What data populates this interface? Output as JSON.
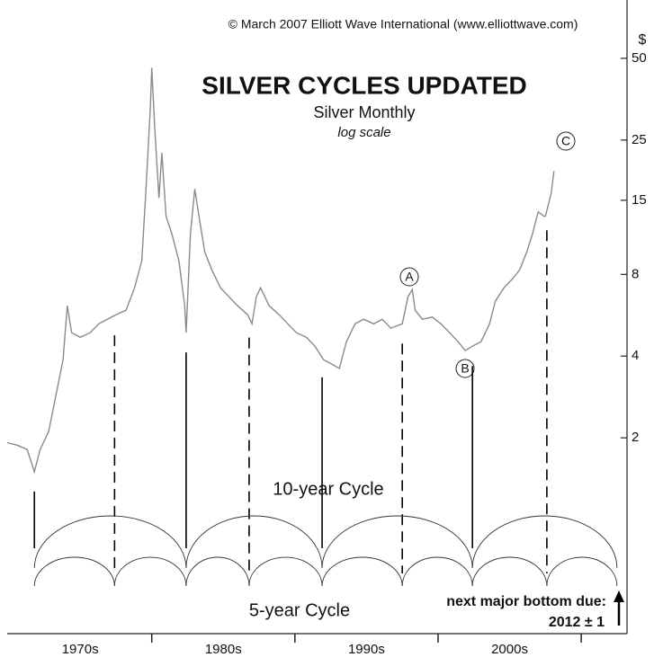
{
  "chart_data": {
    "type": "line",
    "title": "SILVER CYCLES UPDATED",
    "subtitle": "Silver Monthly",
    "scale_note": "log scale",
    "copyright": "© March 2007 Elliott Wave International (www.elliottwave.com)",
    "y_unit": "$",
    "log_scale": true,
    "color": "#8a8a8a",
    "x": [
      1969.9,
      1970.6,
      1971.3,
      1971.8,
      1972.2,
      1972.8,
      1973.3,
      1973.8,
      1974.1,
      1974.4,
      1975.0,
      1975.7,
      1976.3,
      1976.9,
      1977.5,
      1978.2,
      1978.8,
      1979.3,
      1979.6,
      1979.9,
      1980.0,
      1980.2,
      1980.5,
      1980.7,
      1981.0,
      1981.4,
      1981.9,
      1982.3,
      1982.4,
      1982.7,
      1983.0,
      1983.3,
      1983.7,
      1984.2,
      1984.8,
      1985.4,
      1986.0,
      1986.7,
      1987.0,
      1987.3,
      1987.6,
      1988.2,
      1988.9,
      1989.5,
      1990.1,
      1990.8,
      1991.4,
      1992.0,
      1992.6,
      1993.1,
      1993.6,
      1994.2,
      1994.8,
      1995.5,
      1996.1,
      1996.7,
      1997.5,
      1997.9,
      1998.2,
      1998.4,
      1998.9,
      1999.6,
      2000.2,
      2000.8,
      2001.4,
      2001.9,
      2002.4,
      2003.0,
      2003.6,
      2004.0,
      2004.6,
      2005.2,
      2005.7,
      2006.2,
      2006.6,
      2007.0,
      2007.4,
      2007.5,
      2007.9,
      2008.1
    ],
    "values": [
      1.92,
      1.88,
      1.81,
      1.5,
      1.81,
      2.11,
      2.86,
      3.88,
      6.13,
      4.88,
      4.69,
      4.88,
      5.26,
      5.47,
      5.68,
      5.9,
      7.14,
      8.97,
      16.5,
      32.8,
      46.1,
      28.1,
      15.3,
      22.4,
      13.1,
      11.3,
      8.97,
      6.13,
      4.88,
      11.3,
      16.5,
      13.1,
      9.68,
      8.31,
      7.14,
      6.61,
      6.13,
      5.68,
      5.26,
      6.61,
      7.14,
      6.13,
      5.68,
      5.26,
      4.88,
      4.69,
      4.35,
      3.88,
      3.73,
      3.6,
      4.52,
      5.26,
      5.47,
      5.26,
      5.47,
      5.07,
      5.26,
      6.61,
      7.03,
      5.9,
      5.47,
      5.57,
      5.26,
      4.88,
      4.52,
      4.19,
      4.35,
      4.52,
      5.26,
      6.37,
      7.14,
      7.7,
      8.31,
      9.68,
      11.3,
      13.6,
      13.1,
      13.1,
      15.9,
      19.2
    ],
    "xlim": [
      1969.9,
      2013.2
    ],
    "ylim": [
      0.38,
      82
    ],
    "yticks": [
      2,
      4,
      8,
      15,
      25,
      50
    ],
    "xticks": [
      {
        "value": 1975,
        "label": "1970s"
      },
      {
        "value": 1985,
        "label": "1980s"
      },
      {
        "value": 1995,
        "label": "1990s"
      },
      {
        "value": 2005,
        "label": "2000s"
      }
    ],
    "decade_marks": [
      1980,
      1990,
      2000,
      2010
    ],
    "cycle_bottoms": [
      1971.8,
      1977.4,
      1982.4,
      1986.8,
      1991.9,
      1997.5,
      2002.4,
      2007.6,
      2012.5
    ],
    "annotations": [
      "A",
      "B",
      "C"
    ],
    "long_cycle_label": "10-year Cycle",
    "short_cycle_label": "5-year Cycle",
    "forecast_label": "next major bottom due:",
    "forecast_value": "2012 ± 1"
  }
}
